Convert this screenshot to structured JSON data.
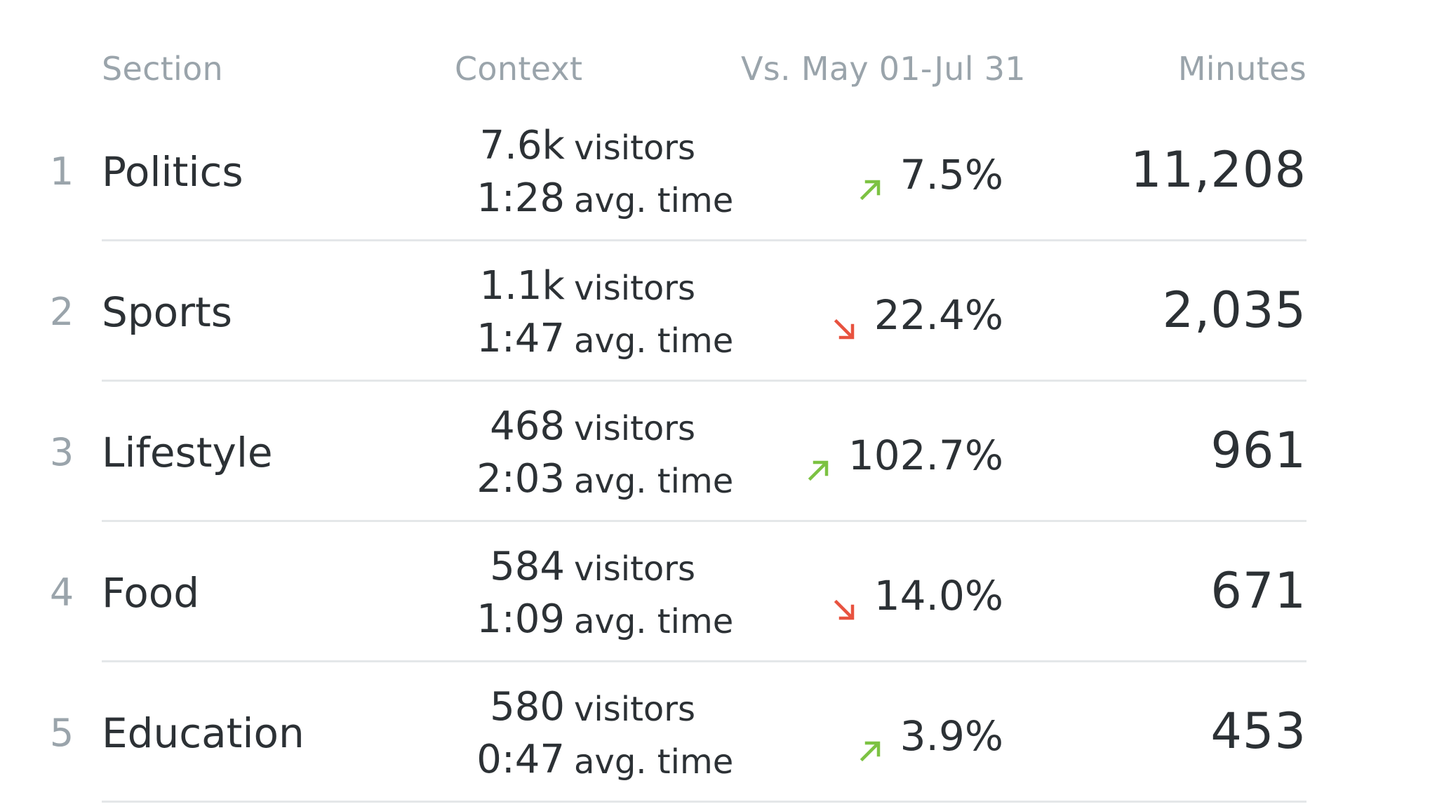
{
  "header": {
    "section": "Section",
    "context": "Context",
    "comparison": "Vs. May 01-Jul 31",
    "minutes": "Minutes"
  },
  "colors": {
    "up": "#7cc242",
    "down": "#e8523f"
  },
  "rows": [
    {
      "rank": "1",
      "section": "Politics",
      "visitors": "7.6k",
      "visitors_label": "visitors",
      "avg_time": "1:28",
      "avg_time_label": "avg. time",
      "direction": "up",
      "arrow_icon": "arrow-up-right-icon",
      "change": "7.5%",
      "minutes": "11,208"
    },
    {
      "rank": "2",
      "section": "Sports",
      "visitors": "1.1k",
      "visitors_label": "visitors",
      "avg_time": "1:47",
      "avg_time_label": "avg. time",
      "direction": "down",
      "arrow_icon": "arrow-down-right-icon",
      "change": "22.4%",
      "minutes": "2,035"
    },
    {
      "rank": "3",
      "section": "Lifestyle",
      "visitors": "468",
      "visitors_label": "visitors",
      "avg_time": "2:03",
      "avg_time_label": "avg. time",
      "direction": "up",
      "arrow_icon": "arrow-up-right-icon",
      "change": "102.7%",
      "minutes": "961"
    },
    {
      "rank": "4",
      "section": "Food",
      "visitors": "584",
      "visitors_label": "visitors",
      "avg_time": "1:09",
      "avg_time_label": "avg. time",
      "direction": "down",
      "arrow_icon": "arrow-down-right-icon",
      "change": "14.0%",
      "minutes": "671"
    },
    {
      "rank": "5",
      "section": "Education",
      "visitors": "580",
      "visitors_label": "visitors",
      "avg_time": "0:47",
      "avg_time_label": "avg. time",
      "direction": "up",
      "arrow_icon": "arrow-up-right-icon",
      "change": "3.9%",
      "minutes": "453"
    }
  ]
}
